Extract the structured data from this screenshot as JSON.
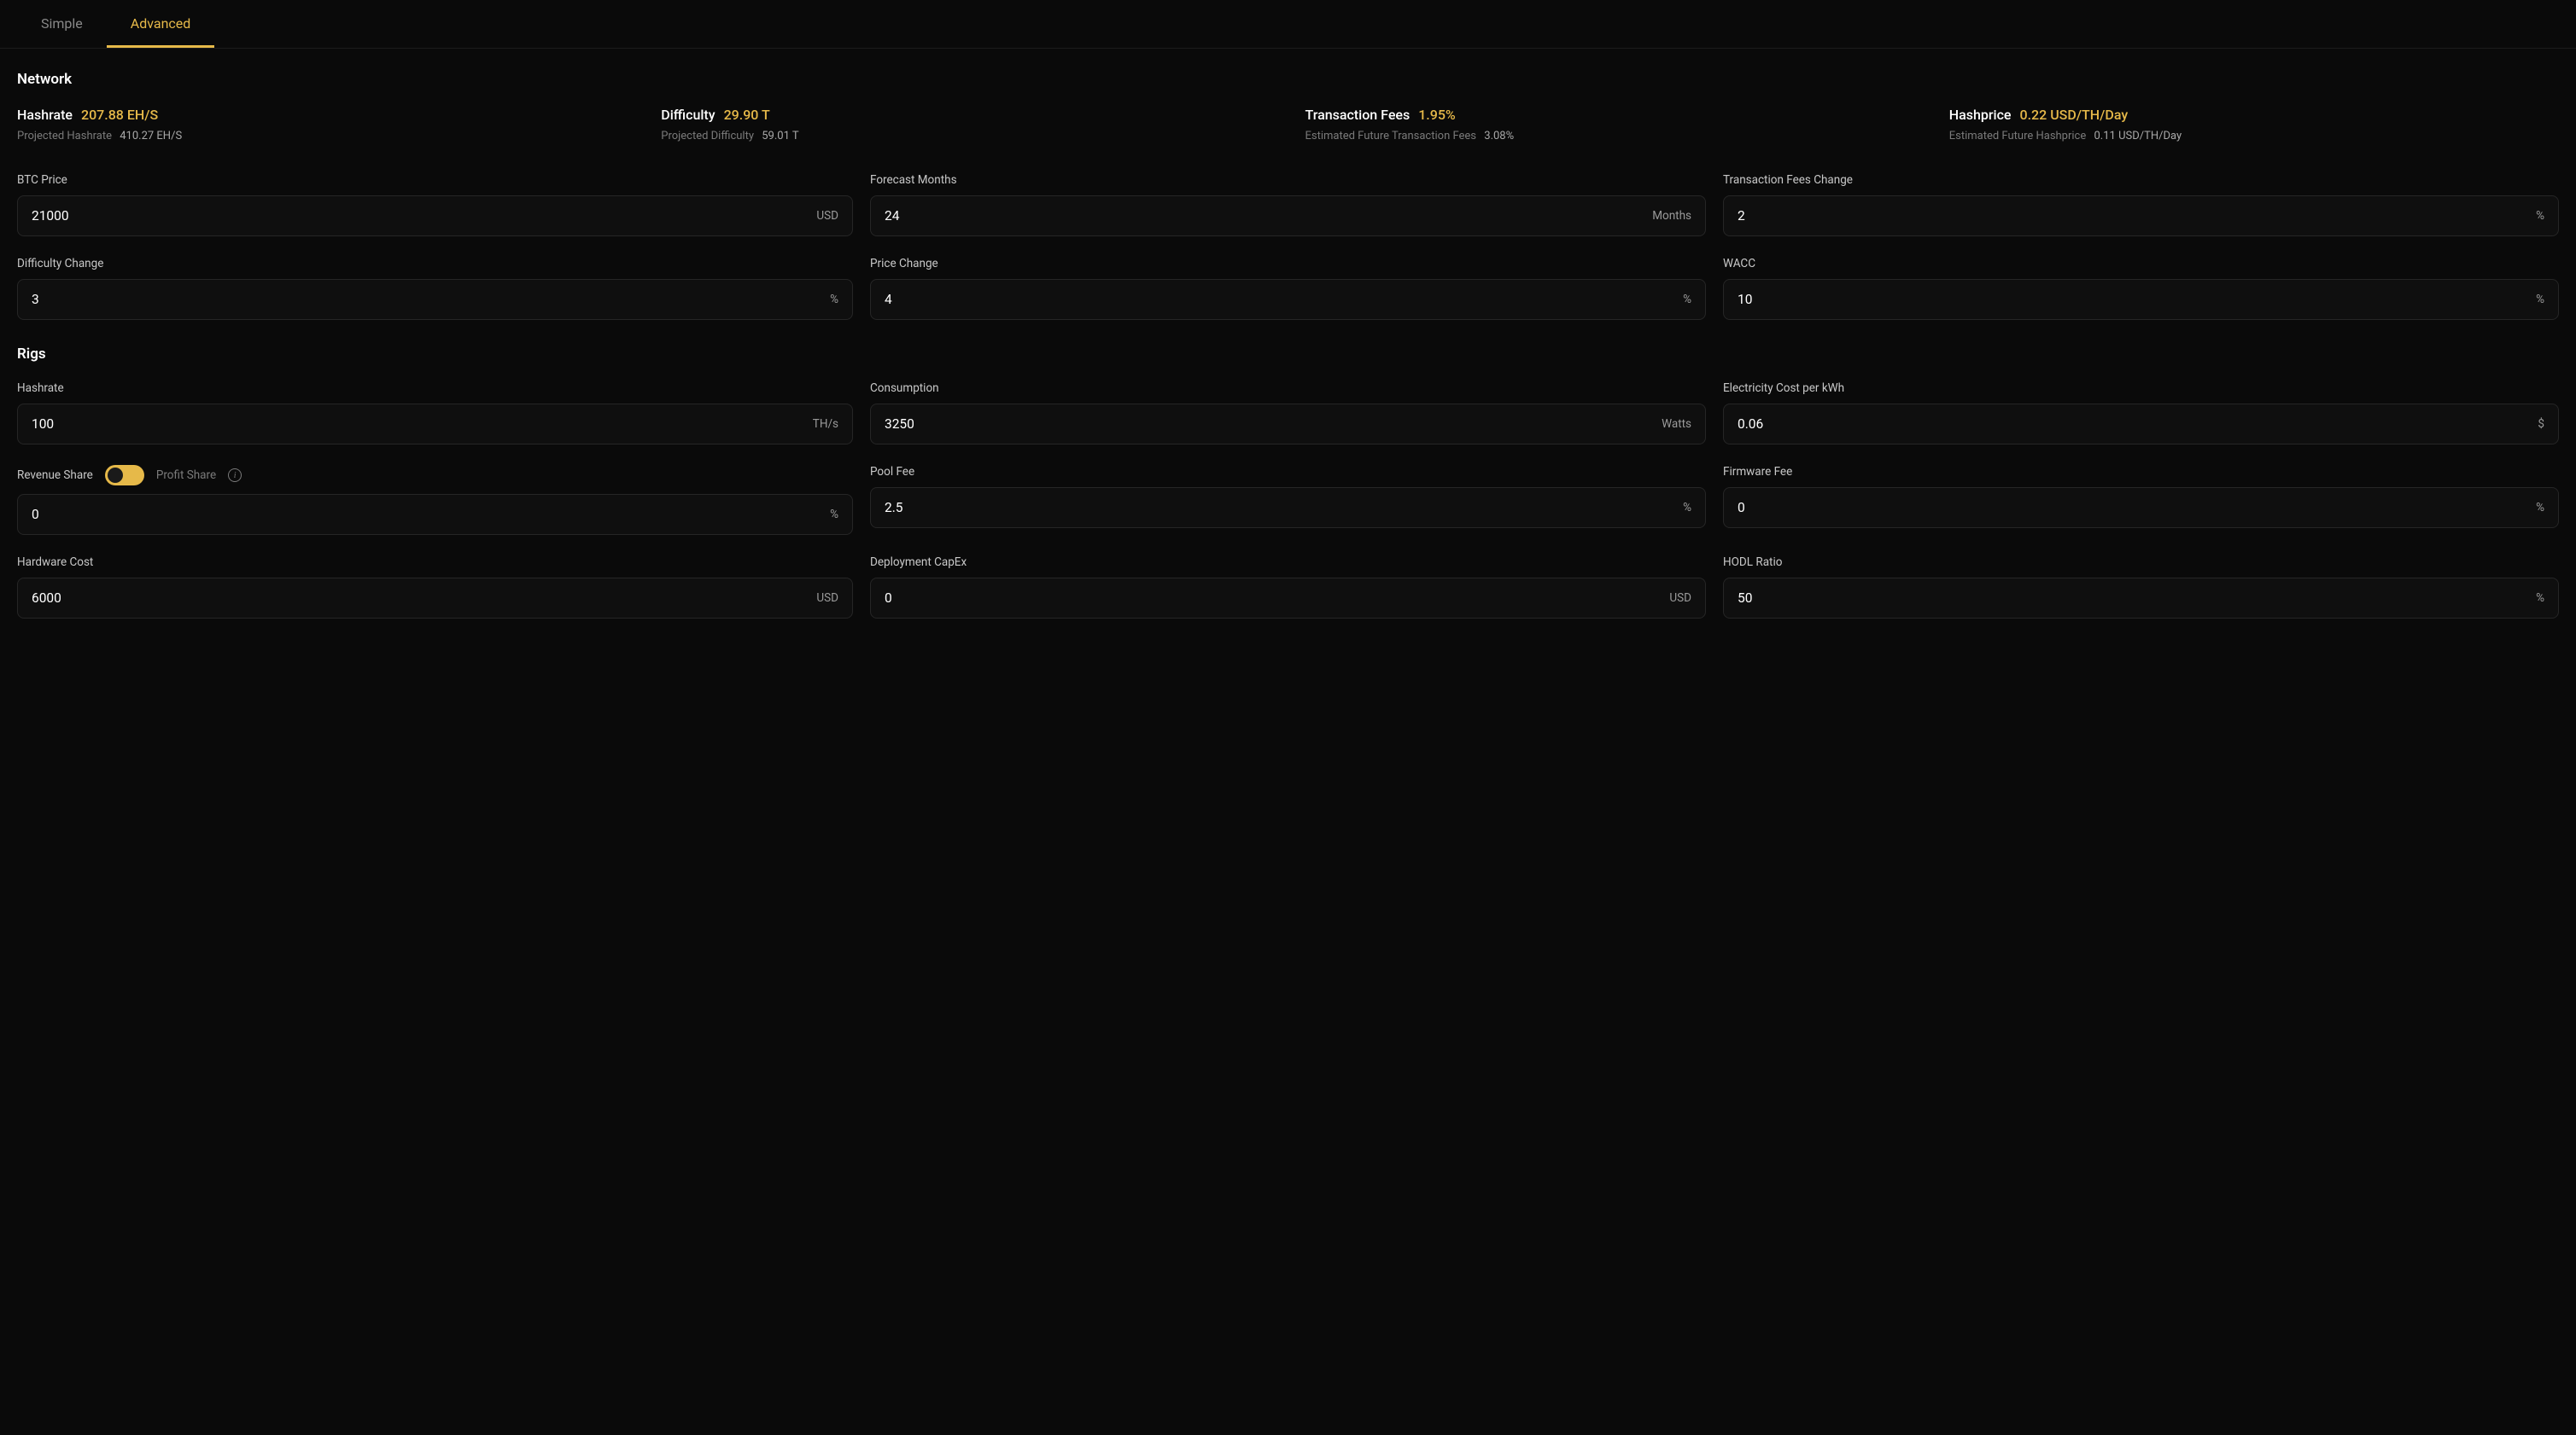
{
  "tabs": {
    "simple": "Simple",
    "advanced": "Advanced"
  },
  "network": {
    "title": "Network",
    "metrics": {
      "hashrate": {
        "label": "Hashrate",
        "value": "207.88 EH/S",
        "sub_label": "Projected Hashrate",
        "sub_value": "410.27 EH/S"
      },
      "difficulty": {
        "label": "Difficulty",
        "value": "29.90 T",
        "sub_label": "Projected Difficulty",
        "sub_value": "59.01 T"
      },
      "tx_fees": {
        "label": "Transaction Fees",
        "value": "1.95%",
        "sub_label": "Estimated Future Transaction Fees",
        "sub_value": "3.08%"
      },
      "hashprice": {
        "label": "Hashprice",
        "value": "0.22 USD/TH/Day",
        "sub_label": "Estimated Future Hashprice",
        "sub_value": "0.11 USD/TH/Day"
      }
    },
    "fields": {
      "btc_price": {
        "label": "BTC Price",
        "value": "21000",
        "unit": "USD"
      },
      "forecast_months": {
        "label": "Forecast Months",
        "value": "24",
        "unit": "Months"
      },
      "tx_fees_change": {
        "label": "Transaction Fees Change",
        "value": "2",
        "unit": "%"
      },
      "difficulty_change": {
        "label": "Difficulty Change",
        "value": "3",
        "unit": "%"
      },
      "price_change": {
        "label": "Price Change",
        "value": "4",
        "unit": "%"
      },
      "wacc": {
        "label": "WACC",
        "value": "10",
        "unit": "%"
      }
    }
  },
  "rigs": {
    "title": "Rigs",
    "fields": {
      "hashrate": {
        "label": "Hashrate",
        "value": "100",
        "unit": "TH/s"
      },
      "consumption": {
        "label": "Consumption",
        "value": "3250",
        "unit": "Watts"
      },
      "electricity": {
        "label": "Electricity Cost per kWh",
        "value": "0.06",
        "unit": "$"
      },
      "revenue_share": {
        "label_a": "Revenue Share",
        "label_b": "Profit Share",
        "value": "0",
        "unit": "%"
      },
      "pool_fee": {
        "label": "Pool Fee",
        "value": "2.5",
        "unit": "%"
      },
      "firmware_fee": {
        "label": "Firmware Fee",
        "value": "0",
        "unit": "%"
      },
      "hardware_cost": {
        "label": "Hardware Cost",
        "value": "6000",
        "unit": "USD"
      },
      "deployment_capex": {
        "label": "Deployment CapEx",
        "value": "0",
        "unit": "USD"
      },
      "hodl_ratio": {
        "label": "HODL Ratio",
        "value": "50",
        "unit": "%"
      }
    }
  },
  "colors": {
    "background": "#0a0a0a",
    "accent": "#e6b949",
    "border": "#262626",
    "text_muted": "#7a7a7a"
  }
}
